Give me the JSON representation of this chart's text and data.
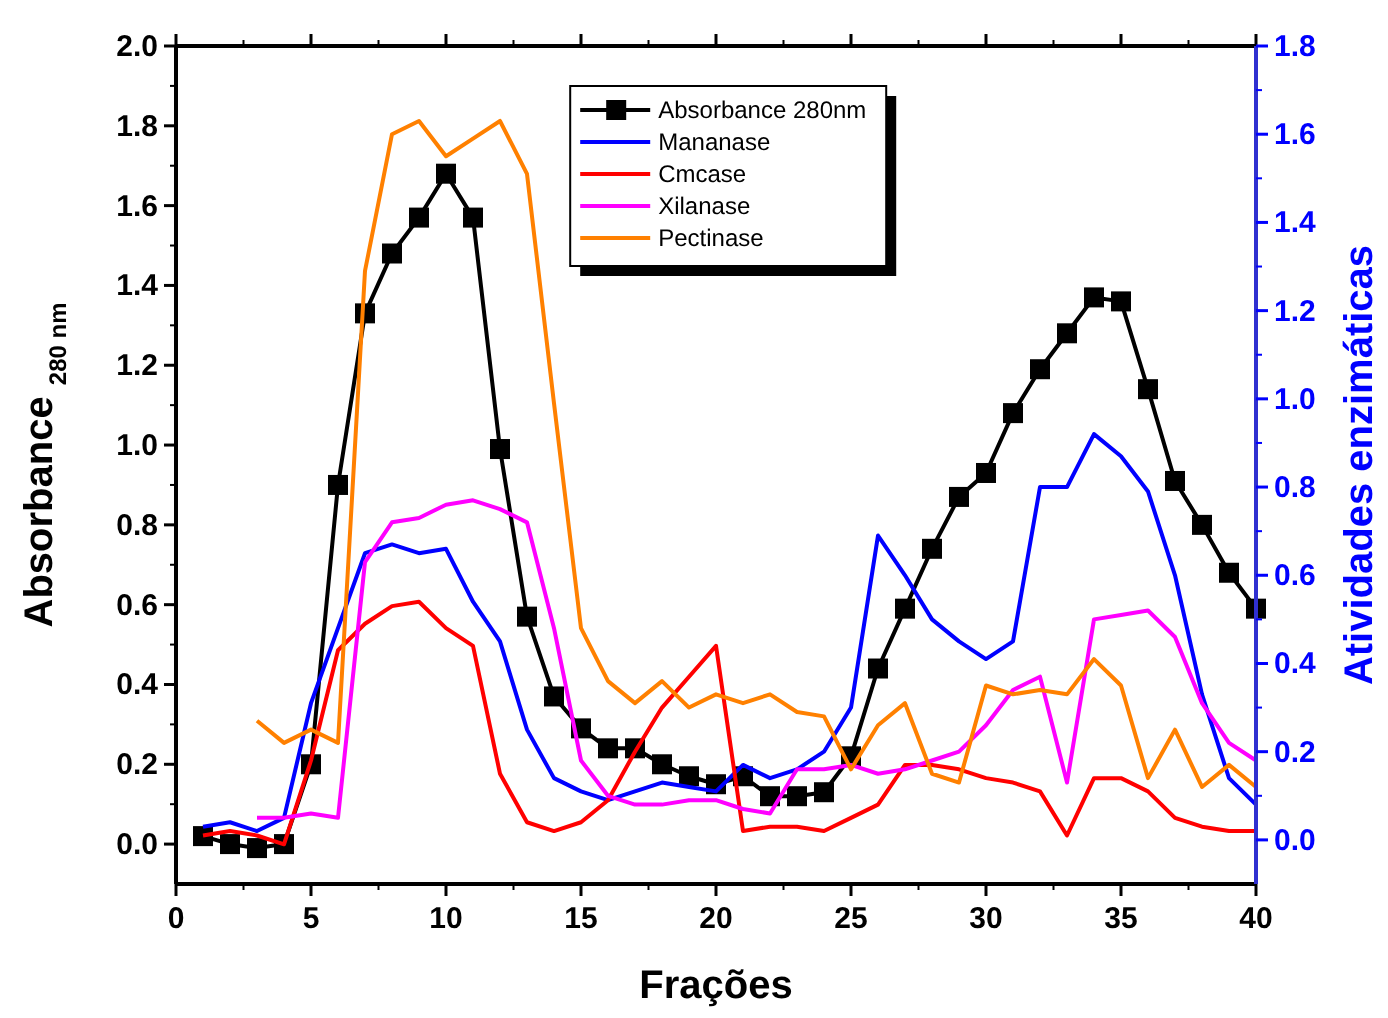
{
  "chart_data": {
    "type": "line",
    "xlabel": "Frações",
    "ylabel": "Absorbance $_{280 nm}$",
    "y2label": "Atividades enzimáticas",
    "x": [
      1,
      2,
      3,
      4,
      5,
      6,
      7,
      8,
      9,
      10,
      11,
      12,
      13,
      14,
      15,
      16,
      17,
      18,
      19,
      20,
      21,
      22,
      23,
      24,
      25,
      26,
      27,
      28,
      29,
      30,
      31,
      32,
      33,
      34,
      35,
      36,
      37,
      38,
      39,
      40
    ],
    "xlim": [
      0,
      40
    ],
    "xticks": [
      0,
      5,
      10,
      15,
      20,
      25,
      30,
      35,
      40
    ],
    "ylim": [
      -0.1,
      2.0
    ],
    "yticks": [
      {
        "value": 0,
        "label": "0.0"
      },
      0.2,
      0.4,
      0.6,
      0.8,
      {
        "value": 1,
        "label": "1.0"
      },
      1.2,
      1.4,
      1.6,
      1.8,
      {
        "value": 2,
        "label": "2.0"
      }
    ],
    "y2lim": [
      -0.1,
      1.8
    ],
    "y2ticks": [
      {
        "value": 0,
        "label": "0.0"
      },
      0.2,
      0.4,
      0.6,
      0.8,
      {
        "value": 1,
        "label": "1.0"
      },
      1.2,
      1.4,
      1.6,
      1.8
    ],
    "legend": "top",
    "grid": false,
    "line_style": "solid",
    "series": [
      {
        "name": "Absorbance 280nm",
        "color": "#000000",
        "marker": "square",
        "values": [
          0.02,
          0.0,
          -0.01,
          0.0,
          0.2,
          0.9,
          1.33,
          1.48,
          1.57,
          1.68,
          1.57,
          0.99,
          0.57,
          0.37,
          0.29,
          0.24,
          0.24,
          0.2,
          0.17,
          0.15,
          0.17,
          0.12,
          0.12,
          0.13,
          0.22,
          0.44,
          0.59,
          0.74,
          0.87,
          0.93,
          1.08,
          1.19,
          1.28,
          1.37,
          1.36,
          1.14,
          0.91,
          0.8,
          0.68,
          0.59
        ]
      },
      {
        "name": "Mananase",
        "color": "#0000ff",
        "axis": "y2",
        "values": [
          0.03,
          0.04,
          0.02,
          0.05,
          0.31,
          0.48,
          0.65,
          0.67,
          0.65,
          0.66,
          0.54,
          0.45,
          0.25,
          0.14,
          0.11,
          0.09,
          0.11,
          0.13,
          0.12,
          0.11,
          0.17,
          0.14,
          0.16,
          0.2,
          0.3,
          0.69,
          0.6,
          0.5,
          0.45,
          0.41,
          0.45,
          0.8,
          0.8,
          0.92,
          0.87,
          0.79,
          0.6,
          0.33,
          0.14,
          0.08
        ]
      },
      {
        "name": "Cmcase",
        "color": "#ff0000",
        "axis": "y2",
        "values": [
          0.01,
          0.02,
          0.01,
          -0.01,
          0.18,
          0.43,
          0.49,
          0.53,
          0.54,
          0.48,
          0.44,
          0.15,
          0.04,
          0.02,
          0.04,
          0.09,
          0.2,
          0.3,
          0.37,
          0.44,
          0.02,
          0.03,
          0.03,
          0.02,
          0.05,
          0.08,
          0.17,
          0.17,
          0.16,
          0.14,
          0.13,
          0.11,
          0.01,
          0.14,
          0.14,
          0.11,
          0.05,
          0.03,
          0.02,
          0.02
        ]
      },
      {
        "name": "Xilanase",
        "color": "#ff00ff",
        "axis": "y2",
        "values": [
          null,
          null,
          0.05,
          0.05,
          0.06,
          0.05,
          0.63,
          0.72,
          0.73,
          0.76,
          0.77,
          0.75,
          0.72,
          0.48,
          0.18,
          0.1,
          0.08,
          0.08,
          0.09,
          0.09,
          0.07,
          0.06,
          0.16,
          0.16,
          0.17,
          0.15,
          0.16,
          0.18,
          0.2,
          0.26,
          0.34,
          0.37,
          0.13,
          0.5,
          0.51,
          0.52,
          0.46,
          0.31,
          0.22,
          0.18
        ]
      },
      {
        "name": "Pectinase",
        "color": "#ff8000",
        "axis": "y2",
        "values": [
          null,
          null,
          0.27,
          0.22,
          0.25,
          0.22,
          1.29,
          1.6,
          1.63,
          1.55,
          1.59,
          1.63,
          1.51,
          0.99,
          0.48,
          0.36,
          0.31,
          0.36,
          0.3,
          0.33,
          0.31,
          0.33,
          0.29,
          0.28,
          0.16,
          0.26,
          0.31,
          0.15,
          0.13,
          0.35,
          0.33,
          0.34,
          0.33,
          0.41,
          0.35,
          0.14,
          0.25,
          0.12,
          0.17,
          0.12
        ]
      }
    ]
  }
}
